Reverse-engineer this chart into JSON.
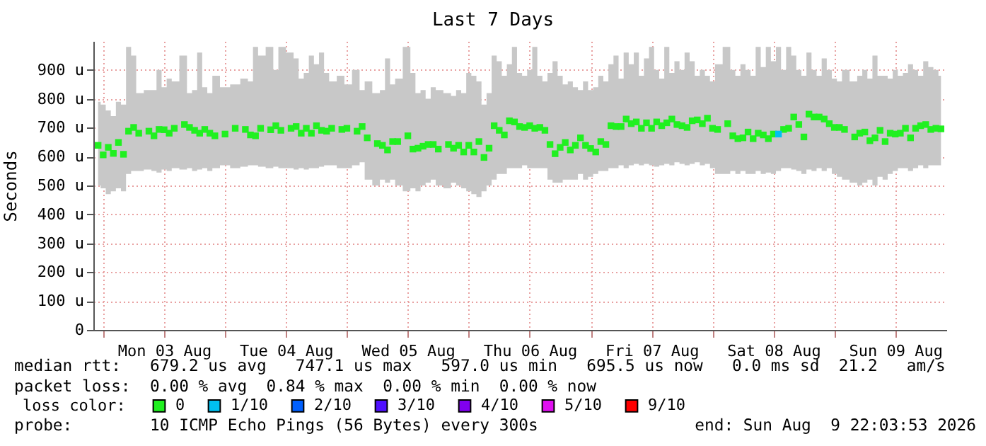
{
  "chart_data": {
    "type": "scatter",
    "title": "Last 7 Days",
    "ylabel": "Seconds",
    "marker": "square",
    "grid": true,
    "legend": "bottom left",
    "legend_title": "loss color:",
    "xlim": [
      "2026-08-02T22:03:53",
      "2026-08-09T22:03:53"
    ],
    "xticks": [
      {
        "value": "2026-08-03T00:00",
        "label": null
      },
      {
        "value": "2026-08-03T12:00",
        "label": "Mon 03 Aug"
      },
      {
        "value": "2026-08-04T00:00",
        "label": null
      },
      {
        "value": "2026-08-04T12:00",
        "label": "Tue 04 Aug"
      },
      {
        "value": "2026-08-05T00:00",
        "label": null
      },
      {
        "value": "2026-08-05T12:00",
        "label": "Wed 05 Aug"
      },
      {
        "value": "2026-08-06T00:00",
        "label": null
      },
      {
        "value": "2026-08-06T12:00",
        "label": "Thu 06 Aug"
      },
      {
        "value": "2026-08-07T00:00",
        "label": null
      },
      {
        "value": "2026-08-07T12:00",
        "label": "Fri 07 Aug"
      },
      {
        "value": "2026-08-08T00:00",
        "label": null
      },
      {
        "value": "2026-08-08T12:00",
        "label": "Sat 08 Aug"
      },
      {
        "value": "2026-08-09T00:00",
        "label": null
      },
      {
        "value": "2026-08-09T12:00",
        "label": "Sun 09 Aug"
      }
    ],
    "ylim": [
      0,
      1000
    ],
    "yticks": [
      0,
      {
        "value": 100,
        "label": "100 u"
      },
      {
        "value": 200,
        "label": "200 u"
      },
      {
        "value": 300,
        "label": "300 u"
      },
      {
        "value": 400,
        "label": "400 u"
      },
      {
        "value": 500,
        "label": "500 u"
      },
      {
        "value": 600,
        "label": "600 u"
      },
      {
        "value": 700,
        "label": "700 u"
      },
      {
        "value": 800,
        "label": "800 u"
      },
      {
        "value": 900,
        "label": "900 u"
      }
    ],
    "annotations": [
      "median rtt:   679.2 us avg   747.1 us max   597.0 us min   695.5 us now   0.0 ms sd  21.2   am/s",
      "packet loss:  0.00 % avg  0.84 % max  0.00 % min  0.00 % now",
      "probe:        10 ICMP Echo Pings (56 Bytes) every 300s",
      "end: Sun Aug  9 22:03:53 2026"
    ],
    "series": [
      {
        "name": "0",
        "color": "#20f020",
        "x": [
          "2026-08-02T23:00",
          "2026-08-03T00:00",
          "2026-08-03T01:00",
          "2026-08-03T02:00",
          "2026-08-03T03:00",
          "2026-08-03T04:00",
          "2026-08-03T05:00",
          "2026-08-03T06:00",
          "2026-08-03T07:00",
          "2026-08-03T09:00",
          "2026-08-03T10:00",
          "2026-08-03T11:00",
          "2026-08-03T12:00",
          "2026-08-03T13:00",
          "2026-08-03T14:00",
          "2026-08-03T16:00",
          "2026-08-03T17:00",
          "2026-08-03T18:00",
          "2026-08-03T19:00",
          "2026-08-03T20:00",
          "2026-08-03T21:00",
          "2026-08-03T22:00",
          "2026-08-04T00:00",
          "2026-08-04T02:00",
          "2026-08-04T04:00",
          "2026-08-04T05:00",
          "2026-08-04T06:00",
          "2026-08-04T07:00",
          "2026-08-04T09:00",
          "2026-08-04T10:00",
          "2026-08-04T11:00",
          "2026-08-04T13:00",
          "2026-08-04T14:00",
          "2026-08-04T15:00",
          "2026-08-04T16:00",
          "2026-08-04T17:00",
          "2026-08-04T18:00",
          "2026-08-04T19:00",
          "2026-08-04T20:00",
          "2026-08-04T21:00",
          "2026-08-04T23:00",
          "2026-08-05T00:00",
          "2026-08-05T02:00",
          "2026-08-05T03:00",
          "2026-08-05T04:00",
          "2026-08-05T06:00",
          "2026-08-05T07:00",
          "2026-08-05T08:00",
          "2026-08-05T09:00",
          "2026-08-05T10:00",
          "2026-08-05T12:00",
          "2026-08-05T13:00",
          "2026-08-05T14:00",
          "2026-08-05T15:00",
          "2026-08-05T16:00",
          "2026-08-05T17:00",
          "2026-08-05T18:00",
          "2026-08-05T20:00",
          "2026-08-05T21:00",
          "2026-08-05T22:00",
          "2026-08-05T23:00",
          "2026-08-06T00:00",
          "2026-08-06T01:00",
          "2026-08-06T02:00",
          "2026-08-06T03:00",
          "2026-08-06T04:00",
          "2026-08-06T05:00",
          "2026-08-06T06:00",
          "2026-08-06T07:00",
          "2026-08-06T08:00",
          "2026-08-06T09:00",
          "2026-08-06T10:00",
          "2026-08-06T11:00",
          "2026-08-06T12:00",
          "2026-08-06T13:00",
          "2026-08-06T14:00",
          "2026-08-06T15:00",
          "2026-08-06T16:00",
          "2026-08-06T17:00",
          "2026-08-06T18:00",
          "2026-08-06T19:00",
          "2026-08-06T20:00",
          "2026-08-06T21:00",
          "2026-08-06T22:00",
          "2026-08-06T23:00",
          "2026-08-07T00:00",
          "2026-08-07T01:00",
          "2026-08-07T02:00",
          "2026-08-07T03:00",
          "2026-08-07T04:00",
          "2026-08-07T05:00",
          "2026-08-07T06:00",
          "2026-08-07T07:00",
          "2026-08-07T08:00",
          "2026-08-07T09:00",
          "2026-08-07T10:00",
          "2026-08-07T11:00",
          "2026-08-07T12:00",
          "2026-08-07T13:00",
          "2026-08-07T14:00",
          "2026-08-07T15:00",
          "2026-08-07T16:00",
          "2026-08-07T17:00",
          "2026-08-07T18:00",
          "2026-08-07T19:00",
          "2026-08-07T20:00",
          "2026-08-07T21:00",
          "2026-08-07T22:00",
          "2026-08-07T23:00",
          "2026-08-08T00:00",
          "2026-08-08T01:00",
          "2026-08-08T03:00",
          "2026-08-08T04:00",
          "2026-08-08T05:00",
          "2026-08-08T06:00",
          "2026-08-08T07:00",
          "2026-08-08T08:00",
          "2026-08-08T09:00",
          "2026-08-08T10:00",
          "2026-08-08T11:00",
          "2026-08-08T12:00",
          "2026-08-08T13:00",
          "2026-08-08T14:00",
          "2026-08-08T15:00",
          "2026-08-08T16:00",
          "2026-08-08T17:00",
          "2026-08-08T18:00",
          "2026-08-08T19:00",
          "2026-08-08T20:00",
          "2026-08-08T21:00",
          "2026-08-08T22:00",
          "2026-08-08T23:00",
          "2026-08-09T00:00",
          "2026-08-09T01:00",
          "2026-08-09T02:00",
          "2026-08-09T04:00",
          "2026-08-09T05:00",
          "2026-08-09T06:00",
          "2026-08-09T07:00",
          "2026-08-09T08:00",
          "2026-08-09T09:00",
          "2026-08-09T10:00",
          "2026-08-09T11:00",
          "2026-08-09T12:00",
          "2026-08-09T13:00",
          "2026-08-09T14:00",
          "2026-08-09T15:00",
          "2026-08-09T16:00",
          "2026-08-09T17:00",
          "2026-08-09T18:00",
          "2026-08-09T19:00",
          "2026-08-09T20:00",
          "2026-08-09T21:00"
        ],
        "values": [
          639,
          606,
          632,
          611,
          649,
          608,
          688,
          701,
          681,
          688,
          672,
          694,
          693,
          681,
          698,
          711,
          701,
          691,
          681,
          694,
          681,
          672,
          678,
          698,
          694,
          675,
          672,
          698,
          693,
          707,
          691,
          698,
          704,
          681,
          698,
          681,
          707,
          691,
          688,
          698,
          694,
          698,
          688,
          704,
          665,
          645,
          639,
          623,
          652,
          652,
          672,
          626,
          629,
          636,
          642,
          642,
          626,
          642,
          629,
          639,
          616,
          639,
          616,
          652,
          597,
          629,
          707,
          691,
          675,
          724,
          720,
          704,
          701,
          707,
          698,
          701,
          691,
          642,
          610,
          632,
          649,
          623,
          639,
          665,
          639,
          628,
          616,
          652,
          642,
          707,
          704,
          704,
          730,
          714,
          720,
          698,
          717,
          698,
          720,
          707,
          717,
          730,
          711,
          707,
          701,
          724,
          727,
          714,
          733,
          698,
          694,
          714,
          672,
          662,
          665,
          685,
          662,
          681,
          675,
          662,
          678,
          null,
          694,
          698,
          737,
          711,
          668,
          747,
          737,
          737,
          730,
          714,
          701,
          701,
          694,
          668,
          681,
          685,
          655,
          665,
          691,
          652,
          681,
          678,
          681,
          698,
          665,
          698,
          707,
          711,
          694,
          698,
          696
        ],
        "lower": [
          500,
          490,
          470,
          480,
          490,
          480,
          540,
          550,
          550,
          555,
          550,
          545,
          555,
          550,
          560,
          555,
          560,
          550,
          555,
          560,
          550,
          560,
          570,
          560,
          565,
          570,
          570,
          565,
          560,
          565,
          560,
          560,
          555,
          560,
          555,
          560,
          560,
          565,
          570,
          570,
          560,
          560,
          570,
          580,
          520,
          500,
          520,
          510,
          520,
          500,
          480,
          490,
          480,
          500,
          510,
          520,
          500,
          490,
          510,
          500,
          490,
          480,
          470,
          460,
          480,
          500,
          520,
          540,
          540,
          560,
          560,
          560,
          570,
          560,
          560,
          560,
          560,
          520,
          510,
          510,
          520,
          520,
          520,
          540,
          520,
          530,
          540,
          550,
          550,
          560,
          560,
          570,
          560,
          570,
          575,
          570,
          575,
          570,
          565,
          570,
          575,
          570,
          580,
          575,
          570,
          575,
          580,
          570,
          575,
          560,
          540,
          540,
          550,
          540,
          550,
          540,
          540,
          550,
          540,
          545,
          540,
          550,
          560,
          560,
          555,
          550,
          540,
          555,
          550,
          560,
          550,
          560,
          540,
          530,
          520,
          510,
          500,
          510,
          520,
          500,
          530,
          520,
          540,
          550,
          560,
          560,
          550,
          560,
          570,
          560,
          570,
          570,
          570
        ],
        "upper": [
          790,
          780,
          760,
          740,
          790,
          780,
          980,
          950,
          820,
          830,
          830,
          900,
          840,
          870,
          860,
          950,
          820,
          830,
          960,
          840,
          820,
          880,
          840,
          850,
          870,
          860,
          980,
          950,
          980,
          900,
          980,
          960,
          940,
          870,
          890,
          950,
          920,
          960,
          890,
          860,
          880,
          850,
          900,
          830,
          860,
          820,
          830,
          940,
          850,
          870,
          980,
          890,
          820,
          830,
          800,
          840,
          830,
          820,
          810,
          830,
          820,
          890,
          880,
          860,
          780,
          820,
          950,
          930,
          880,
          920,
          980,
          890,
          880,
          900,
          980,
          880,
          860,
          890,
          930,
          880,
          850,
          860,
          840,
          830,
          860,
          830,
          840,
          880,
          860,
          920,
          950,
          870,
          960,
          920,
          960,
          880,
          940,
          980,
          900,
          870,
          980,
          890,
          930,
          900,
          960,
          930,
          880,
          900,
          880,
          860,
          920,
          980,
          900,
          880,
          920,
          900,
          880,
          980,
          910,
          980,
          930,
          980,
          900,
          980,
          950,
          900,
          880,
          960,
          900,
          880,
          940,
          900,
          870,
          860,
          900,
          860,
          880,
          900,
          870,
          950,
          880,
          880,
          870,
          900,
          880,
          890,
          920,
          900,
          880,
          930,
          910,
          900,
          880
        ]
      },
      {
        "name": "1/10",
        "color": "#00c0f0",
        "x": [
          "2026-08-08T13:00"
        ],
        "values": [
          678
        ]
      },
      {
        "name": "2/10",
        "color": "#0060ff"
      },
      {
        "name": "3/10",
        "color": "#5010ff"
      },
      {
        "name": "4/10",
        "color": "#8000f0"
      },
      {
        "name": "5/10",
        "color": "#e010f0"
      },
      {
        "name": "9/10",
        "color": "#ff0000"
      }
    ]
  }
}
